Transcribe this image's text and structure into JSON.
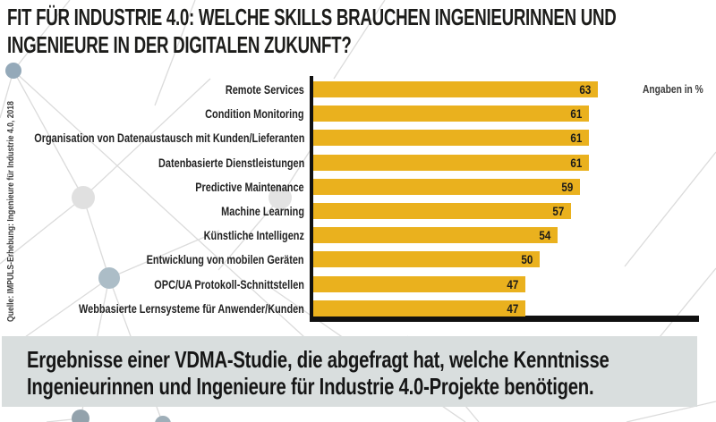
{
  "title": {
    "line1": "FIT FÜR INDUSTRIE 4.0: WELCHE SKILLS BRAUCHEN INGENIEURINNEN UND",
    "line2": "INGENIEURE IN DER DIGITALEN ZUKUNFT?"
  },
  "source_note": "Quelle: IMPULS-Erhebung: Ingenieure für Industrie 4.0, 2018",
  "unit_note": "Angaben in %",
  "chart_data": {
    "type": "bar",
    "orientation": "horizontal",
    "categories": [
      "Remote Services",
      "Condition Monitoring",
      "Organisation von Datenaustausch mit Kunden/Lieferanten",
      "Datenbasierte Dienstleistungen",
      "Predictive Maintenance",
      "Machine Learning",
      "Künstliche Intelligenz",
      "Entwicklung von mobilen Geräten",
      "OPC/UA Protokoll-Schnittstellen",
      "Webbasierte Lernsysteme für Anwender/Kunden"
    ],
    "values": [
      63,
      61,
      61,
      61,
      59,
      57,
      54,
      50,
      47,
      47
    ],
    "unit": "%",
    "xlim": [
      0,
      86
    ],
    "data_labels": true,
    "legend": "none",
    "grid": false
  },
  "caption": {
    "line1": "Ergebnisse einer VDMA-Studie, die abgefragt hat, welche Kenntnisse",
    "line2": "Ingenieurinnen und Ingenieure für Industrie 4.0-Projekte benötigen."
  },
  "colors": {
    "bar": "#EAB11E",
    "axis": "#101010",
    "caption_bg": "#D9DEDE",
    "text_dark": "#1D1D1B",
    "text_gray": "#3C3C3C",
    "network_line": "#DBDBDB",
    "node_light": "#E0E0E0",
    "node_blue": "#94A9B9",
    "node_blue_light": "#ACBDC7"
  }
}
